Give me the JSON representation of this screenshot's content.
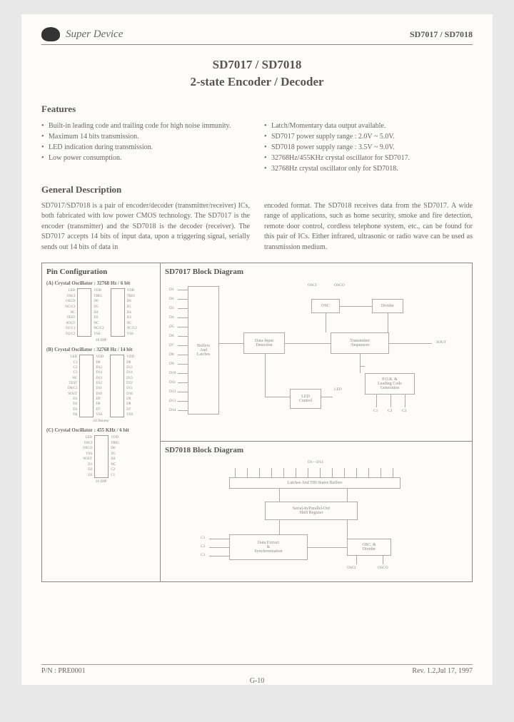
{
  "header": {
    "company": "Super Device",
    "part_nums": "SD7017 / SD7018"
  },
  "title": {
    "line1": "SD7017 / SD7018",
    "line2": "2-state Encoder / Decoder"
  },
  "features": {
    "heading": "Features",
    "col1": [
      "Built-in leading code and trailing code for high noise immunity.",
      "Maximum 14 bits transmission.",
      "LED indication during transmission.",
      "Low power consumption."
    ],
    "col2": [
      "Latch/Momentary data output available.",
      "SD7017 power supply range : 2.0V ~ 5.0V.",
      "SD7018 power supply range : 3.5V ~ 9.0V.",
      "32768Hz/455KHz crystal oscillator for SD7017.",
      "32768Hz crystal oscillator only for SD7018."
    ]
  },
  "description": {
    "heading": "General Description",
    "col1": "SD7017/SD7018 is a pair of encoder/decoder (transmitter/receiver) ICs, both fabricated with low power CMOS technology. The SD7017 is the encoder (transmitter) and the SD7018 is the decoder (receiver). The SD7017 accepts 14 bits of input data, upon a triggering signal, serially sends out 14 bits of data in",
    "col2": "encoded format. The SD7018 receives data from the SD7017. A wide range of applications, such as home security, smoke and fire detection, remote door control, cordless telephone system, etc., can be found for this pair of ICs. Either infrared, ultrasonic or radio wave can be used as transmission medium."
  },
  "pin": {
    "title": "Pin Configuration",
    "sub_a": "(A) Crystal Oscillator : 32768 Hz / 6 bit",
    "sub_b": "(B) Crystal Oscillator : 32768 Hz / 14 bit",
    "sub_c": "(C) Crystal Oscillator : 455 KHz / 6 bit",
    "dip18": "18 DIP",
    "dip16": "16 DIP",
    "dip24a": "24 Skinny",
    "dip24b": "24 Skinny",
    "left_pins_18": [
      "LED",
      "OSCI",
      "OSCO",
      "NC/C3",
      "NC",
      "TEST",
      "SOUT",
      "D1/C1",
      "D2/C2"
    ],
    "right_pins_18": [
      "VDD",
      "TRIG",
      "D6",
      "D5",
      "D4",
      "D3",
      "NC",
      "NC/C2",
      "VSS"
    ],
    "left_pins_24": [
      "LED",
      "C1",
      "C2",
      "C3",
      "NC",
      "TEST",
      "D6/C3",
      "SOUT",
      "D1",
      "D2",
      "D3",
      "D4"
    ],
    "right_pins_24": [
      "VDD",
      "D8",
      "D12",
      "D14",
      "D13",
      "D12",
      "D11",
      "D10",
      "D9",
      "D8",
      "D7",
      "VSS"
    ],
    "left_pins_16": [
      "LED",
      "OSCI",
      "OSCO",
      "VSS",
      "SOUT",
      "D1",
      "D2",
      "D3"
    ],
    "right_pins_16": [
      "VDD",
      "TRIG",
      "D6",
      "D5",
      "D4",
      "NC",
      "C2",
      "C1"
    ]
  },
  "bd7017": {
    "title": "SD7017 Block Diagram",
    "d_labels": [
      "D1",
      "D2",
      "D3",
      "D4",
      "D5",
      "D6",
      "D7",
      "D8",
      "D9",
      "D10",
      "D11",
      "D12",
      "D13",
      "D14"
    ],
    "buffers": "Buffers\nAnd\nLatches",
    "data_input": "Data-Input\nDetection",
    "osc": "OSC",
    "divider": "Divider",
    "transmitter": "Transmitter\n/Sequencer",
    "led_control": "LED\nControl",
    "por": "P.O.R. &\nLeading Code\nGeneration",
    "osci": "OSCI",
    "osco": "OSCO",
    "sout": "SOUT",
    "led": "LED",
    "c1": "C1",
    "c2": "C2",
    "c3": "C3"
  },
  "bd7018": {
    "title": "SD7018 Block Diagram",
    "d_range": "D1—D14",
    "latches": "Latches And TRI-States Buffers",
    "shift": "Serial-In/Parallel-Out\nShift Register",
    "extract": "Data Extract\n&\nSynchronization",
    "osc": "OSC. &\nDivider",
    "c1": "C1",
    "c2": "C2",
    "c3": "C3",
    "osci": "OSCI",
    "osco": "OSCO"
  },
  "footer": {
    "left": "P/N : PRE0001",
    "right": "Rev. 1.2,Jul 17, 1997",
    "page": "G-10"
  },
  "colors": {
    "page_bg": "#fdfcf8",
    "outer_bg": "#e8e8e8",
    "text": "#666",
    "heading": "#555",
    "border": "#888"
  }
}
